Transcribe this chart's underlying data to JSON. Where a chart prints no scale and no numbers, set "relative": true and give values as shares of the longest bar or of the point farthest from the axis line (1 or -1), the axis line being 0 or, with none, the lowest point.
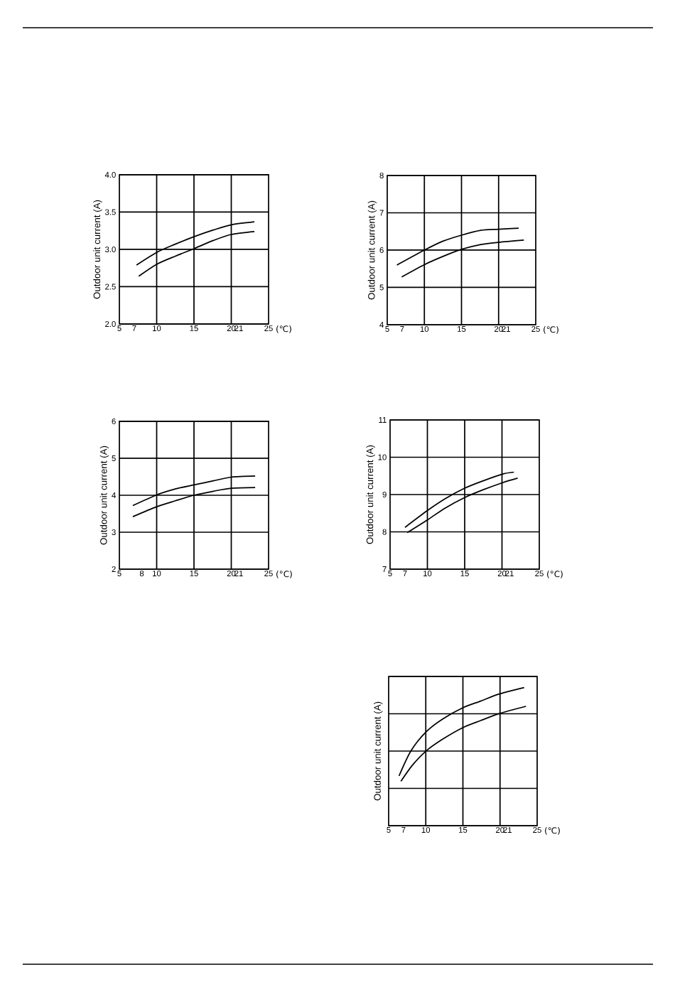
{
  "chart_data": [
    {
      "type": "line",
      "xlabel": "(℃)",
      "ylabel": "Outdoor unit current (A)",
      "xlim": [
        5,
        25
      ],
      "ylim": [
        2,
        4
      ],
      "xticks": [
        5,
        7,
        10,
        15,
        20,
        21,
        25
      ],
      "yticks": [
        {
          "value": 2,
          "label": "2.0"
        },
        2.5,
        {
          "value": 3,
          "label": "3.0"
        },
        3.5,
        {
          "value": 4,
          "label": "4.0"
        }
      ],
      "grid": true,
      "series": [
        {
          "color": "#000000",
          "x": [
            7.3,
            10,
            12.5,
            15,
            17.6,
            20,
            23.1
          ],
          "values": [
            2.79,
            2.96,
            3.07,
            3.17,
            3.26,
            3.33,
            3.37
          ]
        },
        {
          "color": "#000000",
          "x": [
            7.6,
            10,
            12.5,
            15,
            17.6,
            20,
            23.1
          ],
          "values": [
            2.64,
            2.8,
            2.91,
            3.01,
            3.12,
            3.2,
            3.24
          ]
        }
      ]
    },
    {
      "type": "line",
      "xlabel": "(℃)",
      "ylabel": "Outdoor unit current (A)",
      "xlim": [
        5,
        25
      ],
      "ylim": [
        4,
        8
      ],
      "xticks": [
        5,
        7,
        10,
        15,
        20,
        21,
        25
      ],
      "yticks": [
        4,
        5,
        6,
        7,
        8
      ],
      "grid": true,
      "series": [
        {
          "color": "#000000",
          "x": [
            6.3,
            10,
            12.5,
            15,
            17.6,
            20,
            22.7
          ],
          "values": [
            5.6,
            6.0,
            6.24,
            6.4,
            6.53,
            6.56,
            6.59
          ]
        },
        {
          "color": "#000000",
          "x": [
            6.95,
            10,
            12.5,
            15,
            17.6,
            20,
            23.4
          ],
          "values": [
            5.28,
            5.61,
            5.83,
            6.02,
            6.15,
            6.21,
            6.27
          ]
        }
      ]
    },
    {
      "type": "line",
      "xlabel": "(°C)",
      "ylabel": "Outdoor unit current (A)",
      "xlim": [
        5,
        25
      ],
      "ylim": [
        2,
        6
      ],
      "xticks": [
        5,
        8,
        10,
        15,
        20,
        21,
        25
      ],
      "yticks": [
        2,
        3,
        4,
        5,
        6
      ],
      "grid": true,
      "series": [
        {
          "color": "#000000",
          "x": [
            6.8,
            10,
            12.5,
            15,
            17.6,
            20,
            23.2
          ],
          "values": [
            3.72,
            4.01,
            4.17,
            4.28,
            4.39,
            4.49,
            4.52
          ]
        },
        {
          "color": "#000000",
          "x": [
            6.8,
            10,
            12.5,
            15,
            17.6,
            20,
            23.2
          ],
          "values": [
            3.42,
            3.69,
            3.85,
            4.0,
            4.11,
            4.19,
            4.21
          ]
        }
      ]
    },
    {
      "type": "line",
      "xlabel": "(°C)",
      "ylabel": "Outdoor unit current (A)",
      "xlim": [
        5,
        25
      ],
      "ylim": [
        7,
        11
      ],
      "xticks": [
        5,
        7,
        10,
        15,
        20,
        21,
        25
      ],
      "yticks": [
        7,
        8,
        9,
        10,
        11
      ],
      "grid": true,
      "series": [
        {
          "color": "#000000",
          "x": [
            7.0,
            10,
            12.4,
            15,
            17.5,
            20.1,
            21.6
          ],
          "values": [
            8.12,
            8.57,
            8.89,
            9.17,
            9.37,
            9.55,
            9.6
          ]
        },
        {
          "color": "#000000",
          "x": [
            7.3,
            10,
            12.4,
            15,
            17.5,
            20.1,
            22.1
          ],
          "values": [
            7.98,
            8.32,
            8.64,
            8.92,
            9.13,
            9.32,
            9.44
          ]
        }
      ]
    },
    {
      "type": "line",
      "relative": true,
      "tick_labels": "x",
      "xlabel": "(℃)",
      "ylabel": "Outdoor unit current (A)",
      "xlim": [
        5,
        25
      ],
      "xticks": [
        5,
        7,
        10,
        15,
        20,
        21,
        25
      ],
      "grid": true,
      "series": [
        {
          "color": "#000000",
          "x": [
            6.4,
            8.0,
            10.05,
            12.3,
            15,
            17.4,
            19.9,
            23.25
          ],
          "values": [
            0.36,
            0.541,
            0.679,
            0.773,
            0.854,
            0.902,
            0.953,
            1
          ]
        },
        {
          "color": "#000000",
          "x": [
            6.65,
            8.2,
            10.05,
            12.3,
            15,
            17.4,
            20,
            23.5
          ],
          "values": [
            0.321,
            0.438,
            0.541,
            0.627,
            0.71,
            0.761,
            0.813,
            0.864
          ]
        }
      ]
    }
  ]
}
